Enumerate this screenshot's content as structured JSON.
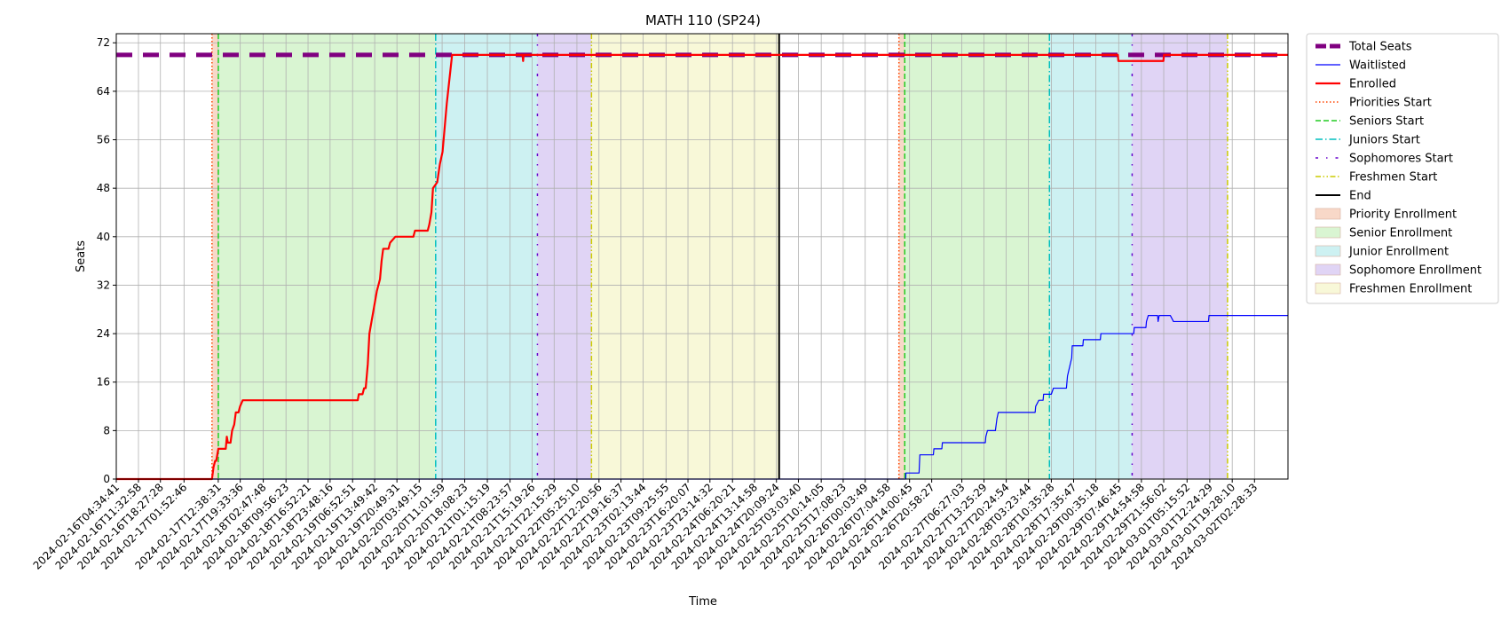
{
  "chart_data": {
    "type": "line",
    "title": "MATH 110 (SP24)",
    "xlabel": "Time",
    "ylabel": "Seats",
    "ylim": [
      0,
      73.5
    ],
    "xlim": [
      "2024-02-16T04:34:41",
      "2024-03-02T13:00:00"
    ],
    "yticks": [
      0,
      8,
      16,
      24,
      32,
      40,
      48,
      56,
      64,
      72
    ],
    "xticks": [
      "2024-02-16T04:34:41",
      "2024-02-16T11:32:58",
      "2024-02-16T18:27:28",
      "2024-02-17T01:52:46",
      "2024-02-17T12:38:31",
      "2024-02-17T19:33:36",
      "2024-02-18T02:47:48",
      "2024-02-18T09:56:23",
      "2024-02-18T16:52:21",
      "2024-02-18T23:48:16",
      "2024-02-19T06:52:51",
      "2024-02-19T13:49:42",
      "2024-02-19T20:49:31",
      "2024-02-20T03:49:15",
      "2024-02-20T11:01:59",
      "2024-02-20T18:08:23",
      "2024-02-21T01:15:19",
      "2024-02-21T08:23:57",
      "2024-02-21T15:19:26",
      "2024-02-21T22:15:29",
      "2024-02-22T05:25:10",
      "2024-02-22T12:20:56",
      "2024-02-22T19:16:37",
      "2024-02-23T02:13:44",
      "2024-02-23T09:25:55",
      "2024-02-23T16:20:07",
      "2024-02-23T23:14:32",
      "2024-02-24T06:20:21",
      "2024-02-24T13:14:58",
      "2024-02-24T20:09:24",
      "2024-02-25T03:03:40",
      "2024-02-25T10:14:05",
      "2024-02-25T17:08:23",
      "2024-02-26T00:03:49",
      "2024-02-26T07:04:58",
      "2024-02-26T14:00:45",
      "2024-02-26T20:58:27",
      "2024-02-27T06:27:03",
      "2024-02-27T13:25:29",
      "2024-02-27T20:24:54",
      "2024-02-28T03:23:44",
      "2024-02-28T10:35:28",
      "2024-02-28T17:35:47",
      "2024-02-29T00:35:18",
      "2024-02-29T07:46:45",
      "2024-02-29T14:54:58",
      "2024-02-29T21:56:02",
      "2024-03-01T05:15:52",
      "2024-03-01T12:24:29",
      "2024-03-01T19:28:10",
      "2024-03-02T02:28:33"
    ],
    "grid": true,
    "legend_position": "outside-right",
    "legend": [
      "Total Seats",
      "Waitlisted",
      "Enrolled",
      "Priorities Start",
      "Seniors Start",
      "Juniors Start",
      "Sophomores Start",
      "Freshmen Start",
      "End",
      "Priority Enrollment",
      "Senior Enrollment",
      "Junior Enrollment",
      "Sophomore Enrollment",
      "Freshmen Enrollment"
    ],
    "series": [
      {
        "name": "Total Seats",
        "color": "#800080",
        "style": "dashed",
        "points": [
          [
            "2024-02-16T04:34:41",
            70
          ],
          [
            "2024-03-02T13:00:00",
            70
          ]
        ]
      },
      {
        "name": "Waitlisted",
        "color": "#0000ff",
        "style": "solid",
        "points": [
          [
            "2024-02-16T04:34:41",
            0
          ],
          [
            "2024-02-26T12:50:00",
            0
          ],
          [
            "2024-02-26T12:52:00",
            1
          ],
          [
            "2024-02-26T17:00:00",
            1
          ],
          [
            "2024-02-26T17:15:00",
            4
          ],
          [
            "2024-02-26T21:30:00",
            4
          ],
          [
            "2024-02-26T21:40:00",
            5
          ],
          [
            "2024-02-27T00:10:00",
            5
          ],
          [
            "2024-02-27T00:20:00",
            6
          ],
          [
            "2024-02-27T13:50:00",
            6
          ],
          [
            "2024-02-27T14:00:00",
            7
          ],
          [
            "2024-02-27T14:30:00",
            8
          ],
          [
            "2024-02-27T17:00:00",
            8
          ],
          [
            "2024-02-27T17:30:00",
            10
          ],
          [
            "2024-02-27T17:55:00",
            11
          ],
          [
            "2024-02-28T05:30:00",
            11
          ],
          [
            "2024-02-28T05:40:00",
            12
          ],
          [
            "2024-02-28T06:40:00",
            13
          ],
          [
            "2024-02-28T08:00:00",
            13
          ],
          [
            "2024-02-28T08:10:00",
            14
          ],
          [
            "2024-02-28T10:35:00",
            14
          ],
          [
            "2024-02-28T11:15:00",
            15
          ],
          [
            "2024-02-28T15:20:00",
            15
          ],
          [
            "2024-02-28T15:40:00",
            17
          ],
          [
            "2024-02-28T17:00:00",
            20
          ],
          [
            "2024-02-28T17:10:00",
            22
          ],
          [
            "2024-02-28T20:30:00",
            22
          ],
          [
            "2024-02-28T20:40:00",
            23
          ],
          [
            "2024-02-29T02:00:00",
            23
          ],
          [
            "2024-02-29T02:10:00",
            24
          ],
          [
            "2024-02-29T12:30:00",
            24
          ],
          [
            "2024-02-29T12:40:00",
            25
          ],
          [
            "2024-02-29T16:20:00",
            25
          ],
          [
            "2024-02-29T16:30:00",
            26
          ],
          [
            "2024-02-29T17:05:00",
            27
          ],
          [
            "2024-02-29T20:00:00",
            27
          ],
          [
            "2024-02-29T20:10:00",
            26
          ],
          [
            "2024-02-29T20:30:00",
            27
          ],
          [
            "2024-02-29T21:00:00",
            27
          ],
          [
            "2024-03-01T00:00:00",
            27
          ],
          [
            "2024-03-01T01:00:00",
            26
          ],
          [
            "2024-03-01T12:00:00",
            26
          ],
          [
            "2024-03-01T12:10:00",
            27
          ],
          [
            "2024-03-02T13:00:00",
            27
          ]
        ]
      },
      {
        "name": "Enrolled",
        "color": "#ff0000",
        "style": "solid",
        "points": [
          [
            "2024-02-16T04:34:41",
            0
          ],
          [
            "2024-02-17T10:40:00",
            0
          ],
          [
            "2024-02-17T11:10:00",
            2
          ],
          [
            "2024-02-17T11:40:00",
            3
          ],
          [
            "2024-02-17T12:00:00",
            3
          ],
          [
            "2024-02-17T12:40:00",
            5
          ],
          [
            "2024-02-17T15:00:00",
            5
          ],
          [
            "2024-02-17T15:20:00",
            7
          ],
          [
            "2024-02-17T15:40:00",
            6
          ],
          [
            "2024-02-17T16:30:00",
            6
          ],
          [
            "2024-02-17T17:00:00",
            8
          ],
          [
            "2024-02-17T17:40:00",
            9
          ],
          [
            "2024-02-17T18:10:00",
            11
          ],
          [
            "2024-02-17T19:00:00",
            11
          ],
          [
            "2024-02-17T19:30:00",
            12
          ],
          [
            "2024-02-17T20:20:00",
            13
          ],
          [
            "2024-02-19T08:30:00",
            13
          ],
          [
            "2024-02-19T08:50:00",
            14
          ],
          [
            "2024-02-19T10:00:00",
            14
          ],
          [
            "2024-02-19T10:30:00",
            15
          ],
          [
            "2024-02-19T11:00:00",
            15
          ],
          [
            "2024-02-19T11:40:00",
            19
          ],
          [
            "2024-02-19T12:10:00",
            24
          ],
          [
            "2024-02-19T12:50:00",
            26
          ],
          [
            "2024-02-19T13:30:00",
            28
          ],
          [
            "2024-02-19T14:30:00",
            31
          ],
          [
            "2024-02-19T15:30:00",
            33
          ],
          [
            "2024-02-19T16:00:00",
            36
          ],
          [
            "2024-02-19T16:30:00",
            38
          ],
          [
            "2024-02-19T18:10:00",
            38
          ],
          [
            "2024-02-19T18:40:00",
            39
          ],
          [
            "2024-02-19T20:20:00",
            40
          ],
          [
            "2024-02-20T02:00:00",
            40
          ],
          [
            "2024-02-20T02:30:00",
            41
          ],
          [
            "2024-02-20T06:30:00",
            41
          ],
          [
            "2024-02-20T07:00:00",
            42
          ],
          [
            "2024-02-20T07:40:00",
            44
          ],
          [
            "2024-02-20T08:10:00",
            48
          ],
          [
            "2024-02-20T09:30:00",
            49
          ],
          [
            "2024-02-20T10:20:00",
            52
          ],
          [
            "2024-02-20T11:10:00",
            54
          ],
          [
            "2024-02-20T11:50:00",
            58
          ],
          [
            "2024-02-20T12:30:00",
            62
          ],
          [
            "2024-02-20T13:20:00",
            66
          ],
          [
            "2024-02-20T14:10:00",
            70
          ],
          [
            "2024-02-21T12:20:00",
            70
          ],
          [
            "2024-02-21T12:30:00",
            69
          ],
          [
            "2024-02-21T12:40:00",
            70
          ],
          [
            "2024-02-29T07:30:00",
            70
          ],
          [
            "2024-02-29T07:40:00",
            69
          ],
          [
            "2024-02-29T21:50:00",
            69
          ],
          [
            "2024-02-29T22:00:00",
            70
          ],
          [
            "2024-03-02T13:00:00",
            70
          ]
        ]
      }
    ],
    "vlines": [
      {
        "name": "Priorities Start",
        "x": "2024-02-17T10:40:00",
        "color": "#ff4500",
        "style": "dotted"
      },
      {
        "name": "Seniors Start",
        "x": "2024-02-17T12:40:00",
        "color": "#22cc22",
        "style": "dashed"
      },
      {
        "name": "Juniors Start",
        "x": "2024-02-20T09:00:00",
        "color": "#00bfbf",
        "style": "dashdot"
      },
      {
        "name": "Sophomores Start",
        "x": "2024-02-21T17:00:00",
        "color": "#6600cc",
        "style": "loosedashdot"
      },
      {
        "name": "Freshmen Start",
        "x": "2024-02-22T10:00:00",
        "color": "#cccc00",
        "style": "dashdotdot"
      },
      {
        "name": "End",
        "x": "2024-02-24T21:00:00",
        "color": "#000000",
        "style": "solid"
      },
      {
        "name": "Priorities Start",
        "x": "2024-02-26T10:40:00",
        "color": "#ff4500",
        "style": "dotted"
      },
      {
        "name": "Seniors Start",
        "x": "2024-02-26T12:30:00",
        "color": "#22cc22",
        "style": "dashed"
      },
      {
        "name": "Juniors Start",
        "x": "2024-02-28T10:00:00",
        "color": "#00bfbf",
        "style": "dashdot"
      },
      {
        "name": "Sophomores Start",
        "x": "2024-02-29T12:00:00",
        "color": "#6600cc",
        "style": "loosedashdot"
      },
      {
        "name": "Freshmen Start",
        "x": "2024-03-01T18:00:00",
        "color": "#cccc00",
        "style": "dashdotdot"
      }
    ],
    "spans": [
      {
        "name": "Priority Enrollment",
        "from": "2024-02-17T10:40:00",
        "to": "2024-02-17T12:40:00",
        "color": "#f8d8c8"
      },
      {
        "name": "Senior Enrollment",
        "from": "2024-02-17T12:40:00",
        "to": "2024-02-20T09:00:00",
        "color": "#d9f5d2"
      },
      {
        "name": "Junior Enrollment",
        "from": "2024-02-20T09:00:00",
        "to": "2024-02-21T17:00:00",
        "color": "#cdf1f2"
      },
      {
        "name": "Sophomore Enrollment",
        "from": "2024-02-21T17:00:00",
        "to": "2024-02-22T10:00:00",
        "color": "#e0d4f5"
      },
      {
        "name": "Freshmen Enrollment",
        "from": "2024-02-22T10:00:00",
        "to": "2024-02-24T21:00:00",
        "color": "#f8f8d8"
      },
      {
        "name": "Priority Enrollment",
        "from": "2024-02-26T10:40:00",
        "to": "2024-02-26T12:30:00",
        "color": "#f8d8c8"
      },
      {
        "name": "Senior Enrollment",
        "from": "2024-02-26T12:30:00",
        "to": "2024-02-28T10:00:00",
        "color": "#d9f5d2"
      },
      {
        "name": "Junior Enrollment",
        "from": "2024-02-28T10:00:00",
        "to": "2024-02-29T12:00:00",
        "color": "#cdf1f2"
      },
      {
        "name": "Sophomore Enrollment",
        "from": "2024-02-29T12:00:00",
        "to": "2024-03-01T18:00:00",
        "color": "#e0d4f5"
      }
    ]
  }
}
